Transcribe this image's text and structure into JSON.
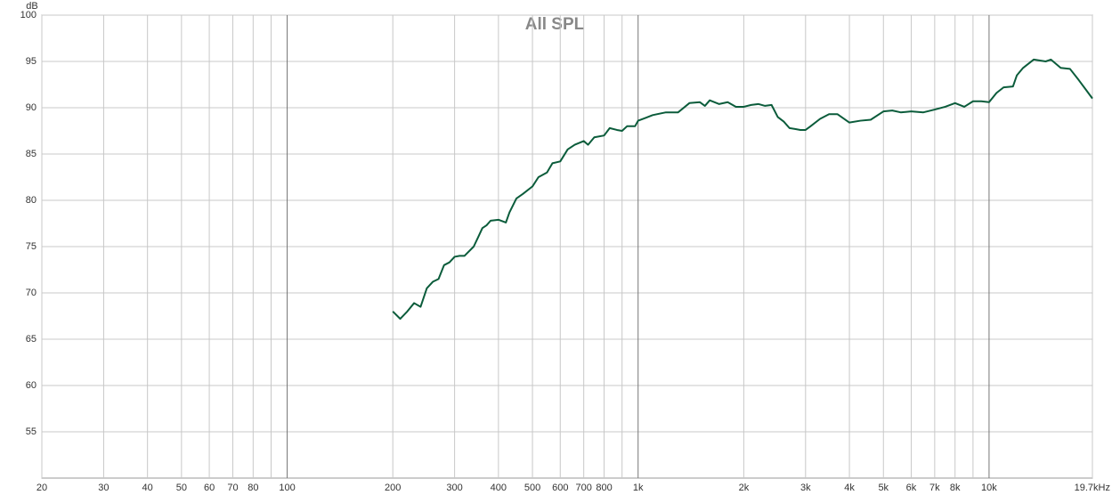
{
  "chart_data": {
    "type": "line",
    "title": "All SPL",
    "y_label": "dB",
    "x_scale": "log",
    "grid": true,
    "color": "#0b5c3b",
    "xlim": [
      20,
      19700
    ],
    "ylim": [
      50,
      100
    ],
    "xticks": [
      20,
      30,
      40,
      50,
      60,
      70,
      80,
      {
        "value": 90,
        "label": null
      },
      100,
      200,
      300,
      400,
      500,
      600,
      700,
      800,
      {
        "value": 900,
        "label": null
      },
      {
        "value": 1000,
        "label": "1k"
      },
      {
        "value": 2000,
        "label": "2k"
      },
      {
        "value": 3000,
        "label": "3k"
      },
      {
        "value": 4000,
        "label": "4k"
      },
      {
        "value": 5000,
        "label": "5k"
      },
      {
        "value": 6000,
        "label": "6k"
      },
      {
        "value": 7000,
        "label": "7k"
      },
      {
        "value": 8000,
        "label": "8k"
      },
      {
        "value": 9000,
        "label": null
      },
      {
        "value": 10000,
        "label": "10k"
      },
      {
        "value": 19700,
        "label": "19.7kHz"
      }
    ],
    "yticks": [
      55,
      60,
      65,
      70,
      75,
      80,
      85,
      90,
      95,
      100
    ],
    "x": [
      200,
      210,
      220,
      230,
      240,
      250,
      260,
      270,
      280,
      290,
      300,
      310,
      320,
      340,
      350,
      360,
      370,
      380,
      400,
      420,
      430,
      450,
      470,
      500,
      520,
      550,
      570,
      600,
      630,
      660,
      700,
      720,
      750,
      800,
      830,
      870,
      900,
      930,
      980,
      1000,
      1050,
      1100,
      1200,
      1300,
      1400,
      1500,
      1550,
      1600,
      1700,
      1800,
      1900,
      2000,
      2100,
      2200,
      2300,
      2400,
      2500,
      2600,
      2700,
      2800,
      2900,
      3000,
      3100,
      3300,
      3500,
      3700,
      4000,
      4300,
      4600,
      5000,
      5300,
      5600,
      6000,
      6500,
      7000,
      7500,
      8000,
      8500,
      9000,
      9500,
      10000,
      10500,
      11000,
      11700,
      12000,
      12500,
      13400,
      14500,
      15000,
      16000,
      17000,
      18000,
      19000,
      19700
    ],
    "values": [
      68.0,
      67.2,
      68.0,
      68.9,
      68.5,
      70.5,
      71.2,
      71.5,
      73.0,
      73.3,
      73.9,
      74.0,
      74.0,
      75.0,
      76.0,
      77.0,
      77.3,
      77.8,
      77.9,
      77.6,
      78.7,
      80.2,
      80.7,
      81.5,
      82.5,
      83.0,
      84.0,
      84.2,
      85.5,
      86.0,
      86.4,
      86.0,
      86.8,
      87.0,
      87.8,
      87.6,
      87.5,
      88.0,
      88.0,
      88.6,
      88.9,
      89.2,
      89.5,
      89.5,
      90.5,
      90.6,
      90.2,
      90.8,
      90.4,
      90.6,
      90.1,
      90.1,
      90.3,
      90.4,
      90.2,
      90.3,
      89.0,
      88.5,
      87.8,
      87.7,
      87.6,
      87.6,
      88.0,
      88.8,
      89.3,
      89.3,
      88.4,
      88.6,
      88.7,
      89.6,
      89.7,
      89.5,
      89.6,
      89.5,
      89.8,
      90.1,
      90.5,
      90.1,
      90.7,
      90.7,
      90.6,
      91.6,
      92.2,
      92.3,
      93.5,
      94.3,
      95.2,
      95.0,
      95.2,
      94.3,
      94.2,
      93.0,
      91.8,
      91.0
    ]
  }
}
